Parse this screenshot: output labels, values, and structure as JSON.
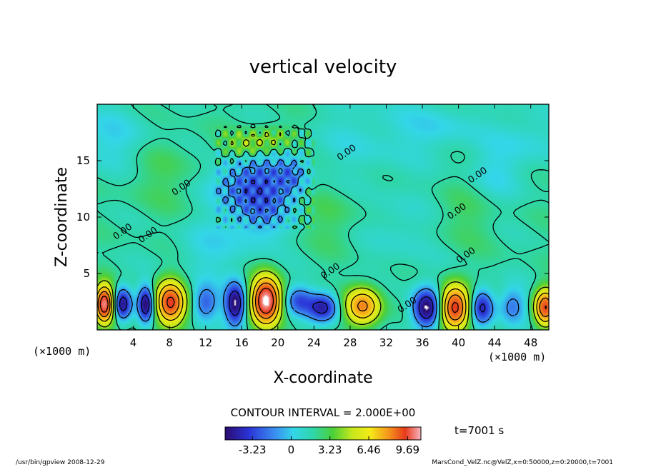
{
  "chart_data": {
    "type": "heatmap",
    "title": "vertical velocity",
    "xlabel": "X-coordinate",
    "ylabel": "Z-coordinate",
    "x_unit": "(×1000 m)",
    "y_unit": "(×1000 m)",
    "xlim": [
      0,
      50
    ],
    "ylim": [
      0,
      20
    ],
    "x_ticks": [
      4,
      8,
      12,
      16,
      20,
      24,
      28,
      32,
      36,
      40,
      44,
      48
    ],
    "y_ticks": [
      5,
      10,
      15
    ],
    "contour_interval_text": "CONTOUR INTERVAL = 2.000E+00",
    "contour_labels": [
      {
        "text": "0.00",
        "x": 9.5,
        "z": 12.4
      },
      {
        "text": "0.00",
        "x": 3.0,
        "z": 8.5
      },
      {
        "text": "0.00",
        "x": 5.8,
        "z": 8.2
      },
      {
        "text": "0.00",
        "x": 27.8,
        "z": 15.5
      },
      {
        "text": "0.00",
        "x": 42.3,
        "z": 13.5
      },
      {
        "text": "0.00",
        "x": 40.0,
        "z": 10.3
      },
      {
        "text": "0.00",
        "x": 41.0,
        "z": 6.4
      },
      {
        "text": "0.00",
        "x": 26.0,
        "z": 5.0
      },
      {
        "text": "0.00",
        "x": 34.5,
        "z": 2.0
      }
    ],
    "colorbar": {
      "tick_labels": [
        "-3.23",
        "0",
        "3.23",
        "6.46",
        "9.69"
      ],
      "tick_values": [
        -3.23,
        0,
        3.23,
        6.46,
        9.69
      ],
      "range": [
        -5.5,
        10.8
      ]
    },
    "cells": [
      {
        "x": 0.8,
        "z": 2.3,
        "w": 10.0,
        "sx": 0.7,
        "sz": 1.1
      },
      {
        "x": 2.8,
        "z": 2.3,
        "w": -5.0,
        "sx": 0.7,
        "sz": 1.0
      },
      {
        "x": 5.4,
        "z": 2.3,
        "w": -5.5,
        "sx": 0.6,
        "sz": 1.1
      },
      {
        "x": 8.1,
        "z": 2.4,
        "w": 8.5,
        "sx": 1.1,
        "sz": 1.3
      },
      {
        "x": 12.0,
        "z": 2.4,
        "w": -3.0,
        "sx": 1.0,
        "sz": 1.1
      },
      {
        "x": 15.3,
        "z": 2.3,
        "w": -5.6,
        "sx": 0.8,
        "sz": 1.3
      },
      {
        "x": 18.7,
        "z": 2.6,
        "w": 10.8,
        "sx": 1.1,
        "sz": 1.4
      },
      {
        "x": 22.3,
        "z": 2.6,
        "w": -3.0,
        "sx": 1.1,
        "sz": 0.9
      },
      {
        "x": 25.0,
        "z": 2.0,
        "w": -4.5,
        "sx": 1.2,
        "sz": 0.9
      },
      {
        "x": 29.4,
        "z": 2.1,
        "w": 6.5,
        "sx": 1.3,
        "sz": 1.1
      },
      {
        "x": 36.5,
        "z": 1.9,
        "w": -5.8,
        "sx": 1.1,
        "sz": 1.2
      },
      {
        "x": 39.6,
        "z": 2.0,
        "w": 9.0,
        "sx": 1.1,
        "sz": 1.3
      },
      {
        "x": 42.6,
        "z": 2.0,
        "w": -4.5,
        "sx": 0.9,
        "sz": 1.1
      },
      {
        "x": 46.0,
        "z": 2.1,
        "w": -2.5,
        "sx": 1.0,
        "sz": 1.1
      },
      {
        "x": 49.6,
        "z": 2.0,
        "w": 8.0,
        "sx": 0.8,
        "sz": 1.1
      },
      {
        "x": 15.8,
        "z": 13.0,
        "w": -2.2,
        "sx": 2.2,
        "sz": 1.5
      },
      {
        "x": 18.5,
        "z": 12.5,
        "w": -1.8,
        "sx": 1.6,
        "sz": 2.0
      },
      {
        "x": 21.5,
        "z": 13.5,
        "w": -2.2,
        "sx": 1.3,
        "sz": 1.5
      },
      {
        "x": 17.5,
        "z": 10.0,
        "w": -1.4,
        "sx": 2.5,
        "sz": 2.0
      },
      {
        "x": 16.5,
        "z": 16.3,
        "w": 1.6,
        "sx": 1.8,
        "sz": 0.8
      },
      {
        "x": 19.5,
        "z": 17.0,
        "w": 1.5,
        "sx": 1.8,
        "sz": 0.8
      },
      {
        "x": 2.0,
        "z": 17.0,
        "w": -1.0,
        "sx": 3.0,
        "sz": 2.0
      },
      {
        "x": 30.0,
        "z": 17.0,
        "w": -0.7,
        "sx": 4.0,
        "sz": 2.5
      },
      {
        "x": 38.0,
        "z": 18.0,
        "w": -0.9,
        "sx": 3.0,
        "sz": 1.5
      },
      {
        "x": 48.0,
        "z": 17.0,
        "w": -0.8,
        "sx": 2.5,
        "sz": 2.0
      },
      {
        "x": 44.0,
        "z": 14.0,
        "w": -0.8,
        "sx": 2.0,
        "sz": 2.0
      },
      {
        "x": 12.0,
        "z": 7.0,
        "w": -0.8,
        "sx": 2.5,
        "sz": 2.0
      },
      {
        "x": 34.0,
        "z": 9.0,
        "w": -0.7,
        "sx": 3.0,
        "sz": 2.5
      },
      {
        "x": 7.0,
        "z": 14.0,
        "w": 0.6,
        "sx": 3.0,
        "sz": 2.5
      },
      {
        "x": 40.0,
        "z": 10.0,
        "w": 0.6,
        "sx": 3.0,
        "sz": 2.0
      },
      {
        "x": 26.0,
        "z": 10.0,
        "w": 0.6,
        "sx": 2.5,
        "sz": 2.0
      }
    ]
  },
  "time_label": "t=7001 s",
  "footer_left": "/usr/bin/gpview   2008-12-29",
  "footer_right": "MarsCond_VelZ.nc@VelZ,x=0:50000,z=0:20000,t=7001"
}
